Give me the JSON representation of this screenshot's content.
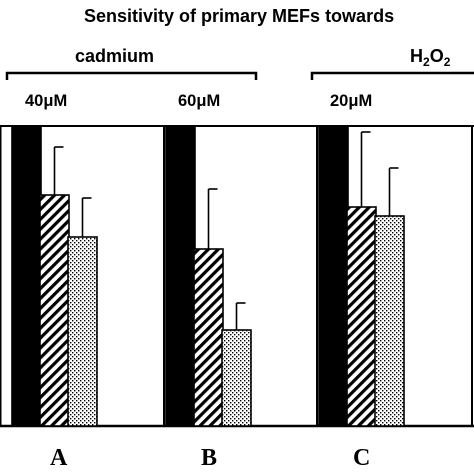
{
  "chart_data": {
    "type": "bar",
    "title": "Sensitivity of primary MEFs towards",
    "xlabel": "",
    "ylabel": "",
    "ylim": [
      0,
      100
    ],
    "groups": [
      {
        "label": "cadmium",
        "concentrations": [
          "40μM",
          "60μM"
        ]
      },
      {
        "label": "H₂O₂",
        "concentrations": [
          "20μM"
        ]
      }
    ],
    "categories": [
      "A",
      "B",
      "C"
    ],
    "series": [
      {
        "fill": "solid-black",
        "values": [
          100,
          100,
          100
        ]
      },
      {
        "fill": "hatched",
        "values": [
          77,
          59,
          73
        ]
      },
      {
        "fill": "dotted",
        "values": [
          63,
          32,
          70
        ]
      }
    ],
    "errors": [
      [
        0,
        0,
        0
      ],
      [
        16,
        20,
        25
      ],
      [
        13,
        9,
        16
      ]
    ],
    "colors": {
      "bars": "#000000",
      "background": "#ffffff"
    }
  }
}
